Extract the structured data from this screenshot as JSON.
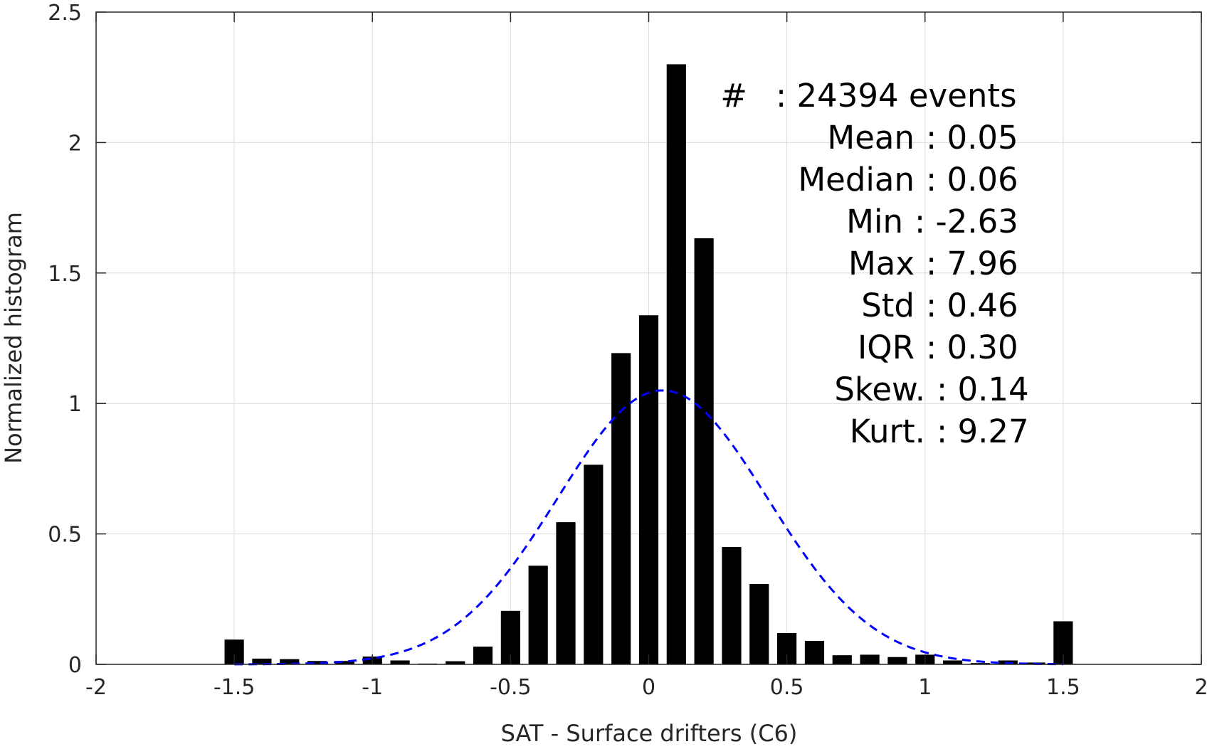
{
  "chart_data": {
    "type": "bar",
    "title": "",
    "xlabel": "SAT - Surface drifters (C6)",
    "ylabel": "Normalized histogram",
    "xlim": [
      -2,
      2
    ],
    "ylim": [
      0,
      2.5
    ],
    "grid": true,
    "x_ticks": [
      "-2",
      "-1.5",
      "-1",
      "-0.5",
      "0",
      "0.5",
      "1",
      "1.5",
      "2"
    ],
    "y_ticks": [
      "0",
      "0.5",
      "1",
      "1.5",
      "2",
      "2.5"
    ],
    "x": [
      -1.5,
      -1.4,
      -1.3,
      -1.2,
      -1.1,
      -1.0,
      -0.9,
      -0.8,
      -0.7,
      -0.6,
      -0.5,
      -0.4,
      -0.3,
      -0.2,
      -0.1,
      0.0,
      0.1,
      0.2,
      0.3,
      0.4,
      0.5,
      0.6,
      0.7,
      0.8,
      0.9,
      1.0,
      1.1,
      1.2,
      1.3,
      1.4,
      1.5
    ],
    "values": [
      0.095,
      0.022,
      0.02,
      0.013,
      0.013,
      0.03,
      0.015,
      0.003,
      0.012,
      0.068,
      0.205,
      0.378,
      0.545,
      0.765,
      1.193,
      1.338,
      2.3,
      1.633,
      0.45,
      0.308,
      0.12,
      0.09,
      0.035,
      0.037,
      0.028,
      0.037,
      0.015,
      0.005,
      0.015,
      0.007,
      0.165
    ],
    "bar_color": "#000000",
    "fit_curve": {
      "style": "dashed",
      "color": "#0000ff",
      "mean": 0.05,
      "std": 0.38,
      "peak": 1.05,
      "x_range": [
        -1.5,
        1.5
      ]
    }
  },
  "stats": [
    {
      "key": "#",
      "value": ": 24394 events"
    },
    {
      "key": "Mean",
      "value": ": 0.05"
    },
    {
      "key": "Median",
      "value": ": 0.06"
    },
    {
      "key": "Min",
      "value": ": -2.63"
    },
    {
      "key": "Max",
      "value": ": 7.96"
    },
    {
      "key": "Std",
      "value": ": 0.46"
    },
    {
      "key": "IQR",
      "value": ": 0.30"
    },
    {
      "key": "Skew.",
      "value": ": 0.14"
    },
    {
      "key": "Kurt.",
      "value": ": 9.27"
    }
  ]
}
